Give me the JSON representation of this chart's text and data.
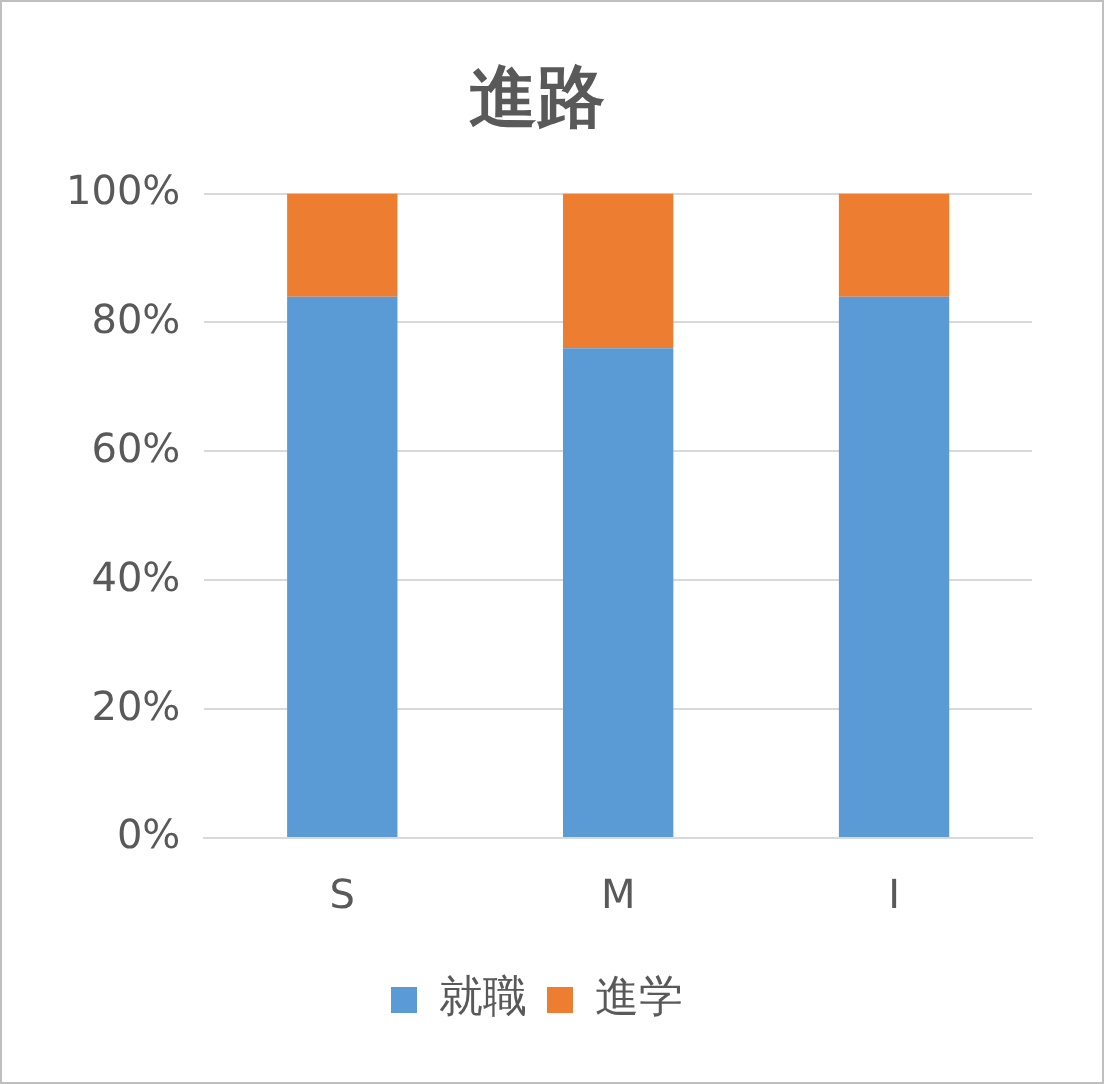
{
  "chart_data": {
    "type": "bar",
    "title": "進路",
    "categories": [
      "S",
      "M",
      "I"
    ],
    "stacked": true,
    "series": [
      {
        "name": "就職",
        "color": "#5b9bd5",
        "values": [
          84,
          76,
          84
        ]
      },
      {
        "name": "進学",
        "color": "#ed7d31",
        "values": [
          16,
          24,
          16
        ]
      }
    ],
    "ylim": [
      0,
      100
    ],
    "yticks": [
      {
        "value": 0,
        "label": "0%"
      },
      {
        "value": 20,
        "label": "20%"
      },
      {
        "value": 40,
        "label": "40%"
      },
      {
        "value": 60,
        "label": "60%"
      },
      {
        "value": 80,
        "label": "80%"
      },
      {
        "value": 100,
        "label": "100%"
      }
    ],
    "grid": "y",
    "legend": "bottom"
  }
}
